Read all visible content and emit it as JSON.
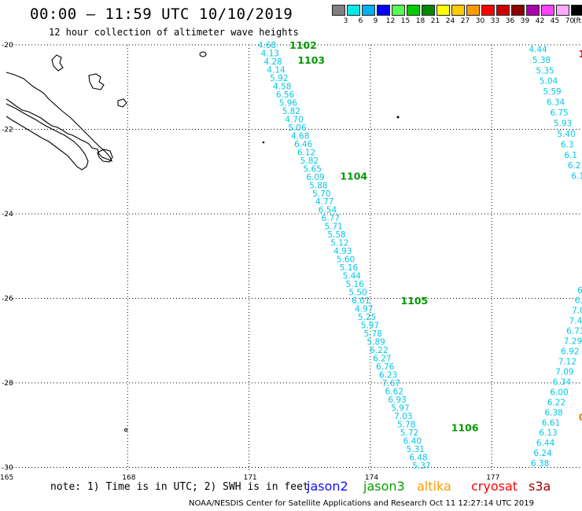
{
  "title": "00:00 – 11:59 UTC 10/10/2019",
  "subtitle": "12 hour collection of altimeter wave heights",
  "colorbar": {
    "unit": "(ft)",
    "ticks": [
      "3",
      "6",
      "9",
      "12",
      "15",
      "18",
      "21",
      "24",
      "27",
      "30",
      "33",
      "36",
      "39",
      "42",
      "45",
      "70"
    ],
    "colors": [
      "#7f7f7f",
      "#00eaea",
      "#00b0f0",
      "#0000ff",
      "#55ff55",
      "#00cc00",
      "#008800",
      "#ffff00",
      "#ffcc00",
      "#ff9900",
      "#ff0000",
      "#cc0000",
      "#8b0000",
      "#aa00aa",
      "#ff44ff",
      "#ffaaff",
      "#000000"
    ]
  },
  "axes": {
    "lat_labels": [
      "-20",
      "-22",
      "-24",
      "-26",
      "-28",
      "-30"
    ],
    "lon_labels": [
      "165",
      "168",
      "171",
      "174",
      "177"
    ],
    "lat_range": [
      -30,
      -20
    ],
    "lon_range": [
      165,
      179.3
    ],
    "grid": "dotted"
  },
  "tracks": [
    {
      "id": "main",
      "start": [
        -20.0,
        171.45
      ],
      "end": [
        -29.95,
        175.27
      ],
      "values": [
        "4.68",
        "4.13",
        "4.28",
        "4.14",
        "5.92",
        "4.58",
        "6.56",
        "5.96",
        "5.82",
        "4.70",
        "5.06",
        "4.68",
        "6.46",
        "6.12",
        "5.82",
        "5.65",
        "6.09",
        "5.88",
        "5.70",
        "4.77",
        "6.54",
        "6.77",
        "5.71",
        "5.58",
        "5.12",
        "4.93",
        "5.60",
        "5.16",
        "5.44",
        "5.16",
        "5.50",
        "6.01",
        "4.97",
        "5.25",
        "5.97",
        "5.78",
        "5.89",
        "6.22",
        "6.27",
        "6.76",
        "6.23",
        "7.67",
        "6.62",
        "6.93",
        "5.97",
        "7.03",
        "5.78",
        "5.72",
        "6.40",
        "5.31",
        "6.48",
        "5.37"
      ]
    },
    {
      "id": "right-upper",
      "start": [
        -20.1,
        178.15
      ],
      "end": [
        -23.1,
        179.2
      ],
      "values": [
        "4.44",
        "5.38",
        "5.35",
        "5.04",
        "5.59",
        "6.34",
        "6.75",
        "5.93",
        "5.40",
        "6.3",
        "6.1",
        "6.2",
        "6.1"
      ]
    },
    {
      "id": "right-lower",
      "start": [
        -25.8,
        179.35
      ],
      "end": [
        -29.9,
        178.2
      ],
      "values": [
        "6.",
        "6.",
        "7.0",
        "7.4",
        "6.71",
        "7.29",
        "6.92",
        "7.12",
        "7.09",
        "6.34",
        "6.00",
        "6.22",
        "6.38",
        "6.61",
        "6.13",
        "6.44",
        "6.24",
        "6.38"
      ]
    }
  ],
  "minute_labels": [
    {
      "text": "1102",
      "lat": -20.0,
      "lon": 172.0,
      "color": "#009a00"
    },
    {
      "text": "1103",
      "lat": -20.35,
      "lon": 172.2,
      "color": "#009a00"
    },
    {
      "text": "1104",
      "lat": -23.1,
      "lon": 173.25,
      "color": "#009a00"
    },
    {
      "text": "1105",
      "lat": -26.05,
      "lon": 174.75,
      "color": "#009a00"
    },
    {
      "text": "1106",
      "lat": -29.05,
      "lon": 176.0,
      "color": "#009a00"
    }
  ],
  "edge_labels": [
    {
      "text": "1",
      "lat": -20.2,
      "lon": 179.15,
      "color": "#cc0000"
    },
    {
      "text": "0",
      "lat": -28.8,
      "lon": 179.15,
      "color": "#e08000"
    }
  ],
  "note": "note: 1) Time is in UTC; 2) SWH is in feet",
  "satellites": [
    {
      "name": "jason2",
      "color": "#1010ff"
    },
    {
      "name": "jason3",
      "color": "#00a000"
    },
    {
      "name": "altika",
      "color": "#ff9900"
    },
    {
      "name": "cryosat",
      "color": "#ff0000"
    },
    {
      "name": "s3a",
      "color": "#990000"
    }
  ],
  "credit": "NOAA/NESDIS Center for Satellite Applications and Research     Oct 11 12:27:14 UTC 2019"
}
